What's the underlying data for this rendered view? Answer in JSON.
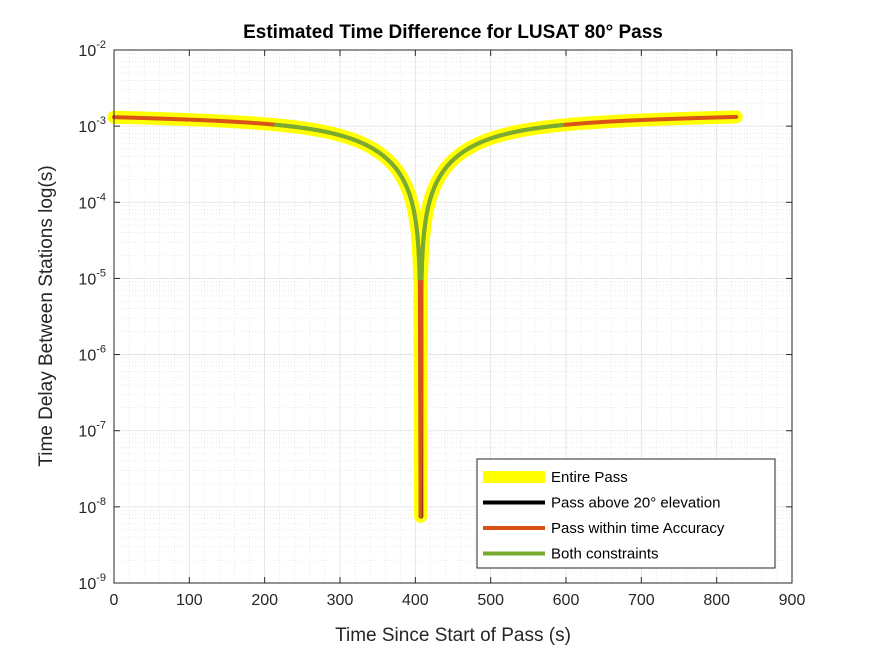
{
  "chart_data": {
    "type": "line",
    "title": "Estimated Time Difference for LUSAT 80° Pass",
    "xlabel": "Time Since Start of Pass (s)",
    "ylabel": "Time Delay Between Stations log(s)",
    "xlim": [
      0,
      900
    ],
    "ylim": [
      1e-09,
      0.01
    ],
    "yscale": "log",
    "grid": true,
    "minor_grid": true,
    "legend_position": "bottom-right",
    "x_ticks": [
      "0",
      "100",
      "200",
      "300",
      "400",
      "500",
      "600",
      "700",
      "800",
      "900"
    ],
    "y_ticks": [
      {
        "base": "10",
        "exp": "-9"
      },
      {
        "base": "10",
        "exp": "-8"
      },
      {
        "base": "10",
        "exp": "-7"
      },
      {
        "base": "10",
        "exp": "-6"
      },
      {
        "base": "10",
        "exp": "-5"
      },
      {
        "base": "10",
        "exp": "-4"
      },
      {
        "base": "10",
        "exp": "-3"
      },
      {
        "base": "10",
        "exp": "-2"
      }
    ],
    "series": [
      {
        "name": "Entire Pass",
        "color": "#FFFF00",
        "x_range": [
          0,
          826
        ],
        "min_x": 407,
        "min_y": 7.5e-09,
        "plateau_y": 0.0013
      },
      {
        "name": "Pass above 20° elevation",
        "color": "#000000",
        "x_range": [
          407,
          408
        ],
        "y_range": [
          7.5e-09,
          1e-05
        ]
      },
      {
        "name": "Pass within time Accuracy",
        "color": "#D95319",
        "x_range": [
          0,
          826
        ],
        "min_x": 407,
        "min_y": 7.5e-09,
        "plateau_y": 0.0013
      },
      {
        "name": "Both constraints",
        "color": "#77AC30",
        "x_range": [
          215,
          595
        ],
        "min_x": 407,
        "min_y": 1e-05,
        "plateau_y": 0.0013
      }
    ]
  }
}
